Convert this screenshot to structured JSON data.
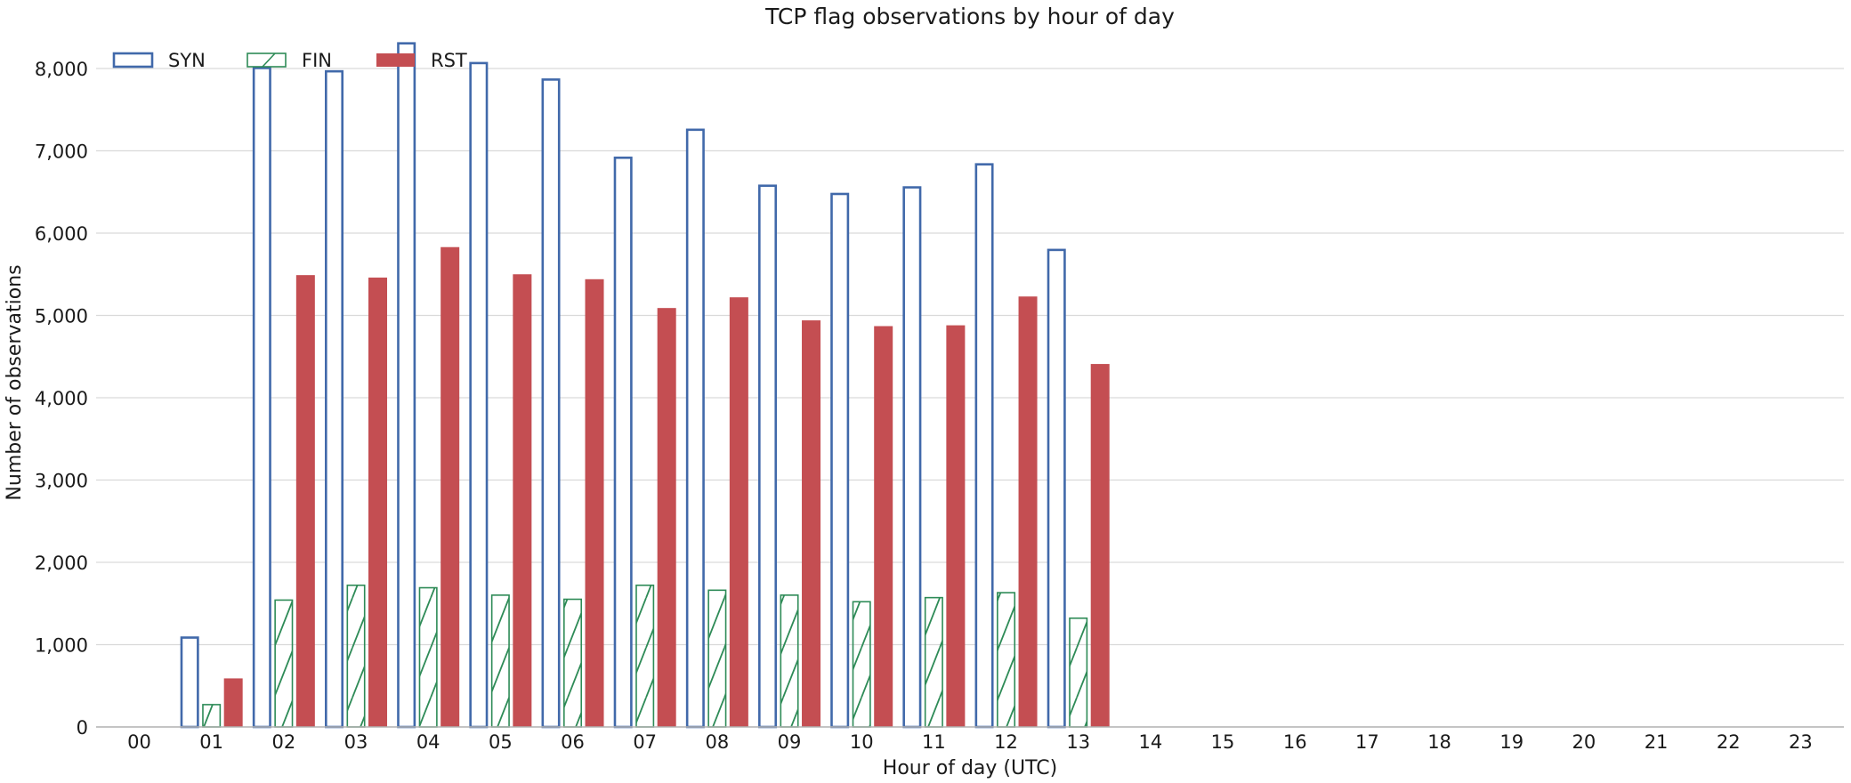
{
  "chart_data": {
    "type": "bar",
    "title": "TCP flag observations by hour of day",
    "xlabel": "Hour of day (UTC)",
    "ylabel": "Number of observations",
    "ylim": [
      0,
      8500
    ],
    "yticks": [
      0,
      1000,
      2000,
      3000,
      4000,
      5000,
      6000,
      7000,
      8000
    ],
    "ytick_labels": [
      "0",
      "1,000",
      "2,000",
      "3,000",
      "4,000",
      "5,000",
      "6,000",
      "7,000",
      "8,000"
    ],
    "grid": "horizontal",
    "legend_position": "top-left",
    "categories": [
      "00",
      "01",
      "02",
      "03",
      "04",
      "05",
      "06",
      "07",
      "08",
      "09",
      "10",
      "11",
      "12",
      "13",
      "14",
      "15",
      "16",
      "17",
      "18",
      "19",
      "20",
      "21",
      "22",
      "23"
    ],
    "series": [
      {
        "name": "SYN",
        "style": "outline",
        "color": "#4169aa",
        "values": [
          0,
          1100,
          8020,
          7980,
          8320,
          8080,
          7880,
          6930,
          7270,
          6590,
          6490,
          6570,
          6850,
          5810,
          0,
          0,
          0,
          0,
          0,
          0,
          0,
          0,
          0,
          0
        ]
      },
      {
        "name": "FIN",
        "style": "hatched",
        "color": "#2e8b57",
        "values": [
          0,
          280,
          1550,
          1730,
          1700,
          1610,
          1560,
          1730,
          1670,
          1610,
          1530,
          1580,
          1640,
          1330,
          0,
          0,
          0,
          0,
          0,
          0,
          0,
          0,
          0,
          0
        ]
      },
      {
        "name": "RST",
        "style": "filled",
        "color": "#c44e52",
        "values": [
          0,
          590,
          5490,
          5460,
          5830,
          5500,
          5440,
          5090,
          5220,
          4940,
          4870,
          4880,
          5230,
          4410,
          0,
          0,
          0,
          0,
          0,
          0,
          0,
          0,
          0,
          0
        ]
      }
    ]
  }
}
